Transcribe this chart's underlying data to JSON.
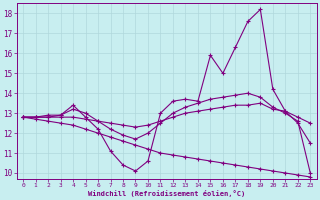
{
  "xlabel": "Windchill (Refroidissement éolien,°C)",
  "bg_color": "#c8eef0",
  "line_color": "#800080",
  "grid_color": "#b0d8dc",
  "xlim": [
    -0.5,
    23.5
  ],
  "ylim": [
    9.7,
    18.5
  ],
  "xticks": [
    0,
    1,
    2,
    3,
    4,
    5,
    6,
    7,
    8,
    9,
    10,
    11,
    12,
    13,
    14,
    15,
    16,
    17,
    18,
    19,
    20,
    21,
    22,
    23
  ],
  "yticks": [
    10,
    11,
    12,
    13,
    14,
    15,
    16,
    17,
    18
  ],
  "line1_x": [
    0,
    1,
    2,
    3,
    4,
    5,
    6,
    7,
    8,
    9,
    10,
    11,
    12,
    13,
    14,
    15,
    16,
    17,
    18,
    19,
    20,
    21,
    22,
    23
  ],
  "line1_y": [
    12.8,
    12.8,
    12.9,
    12.9,
    13.4,
    12.8,
    12.2,
    11.1,
    10.4,
    10.1,
    10.6,
    13.0,
    13.6,
    13.7,
    13.6,
    15.9,
    15.0,
    16.3,
    17.6,
    18.2,
    14.2,
    13.1,
    12.5,
    11.5
  ],
  "line2_x": [
    0,
    1,
    2,
    3,
    4,
    5,
    6,
    7,
    8,
    9,
    10,
    11,
    12,
    13,
    14,
    15,
    16,
    17,
    18,
    19,
    20,
    21,
    22,
    23
  ],
  "line2_y": [
    12.8,
    12.8,
    12.8,
    12.8,
    12.8,
    12.7,
    12.6,
    12.5,
    12.4,
    12.3,
    12.4,
    12.6,
    12.8,
    13.0,
    13.1,
    13.2,
    13.3,
    13.4,
    13.4,
    13.5,
    13.2,
    13.1,
    12.8,
    12.5
  ],
  "line3_x": [
    0,
    1,
    2,
    3,
    4,
    5,
    6,
    7,
    8,
    9,
    10,
    11,
    12,
    13,
    14,
    15,
    16,
    17,
    18,
    19,
    20,
    21,
    22,
    23
  ],
  "line3_y": [
    12.8,
    12.8,
    12.8,
    12.9,
    13.2,
    13.0,
    12.6,
    12.2,
    11.9,
    11.7,
    12.0,
    12.5,
    13.0,
    13.3,
    13.5,
    13.7,
    13.8,
    13.9,
    14.0,
    13.8,
    13.3,
    13.0,
    12.6,
    10.0
  ],
  "line4_x": [
    0,
    1,
    2,
    3,
    4,
    5,
    6,
    7,
    8,
    9,
    10,
    11,
    12,
    13,
    14,
    15,
    16,
    17,
    18,
    19,
    20,
    21,
    22,
    23
  ],
  "line4_y": [
    12.8,
    12.7,
    12.6,
    12.5,
    12.4,
    12.2,
    12.0,
    11.8,
    11.6,
    11.4,
    11.2,
    11.0,
    10.9,
    10.8,
    10.7,
    10.6,
    10.5,
    10.4,
    10.3,
    10.2,
    10.1,
    10.0,
    9.9,
    9.8
  ]
}
